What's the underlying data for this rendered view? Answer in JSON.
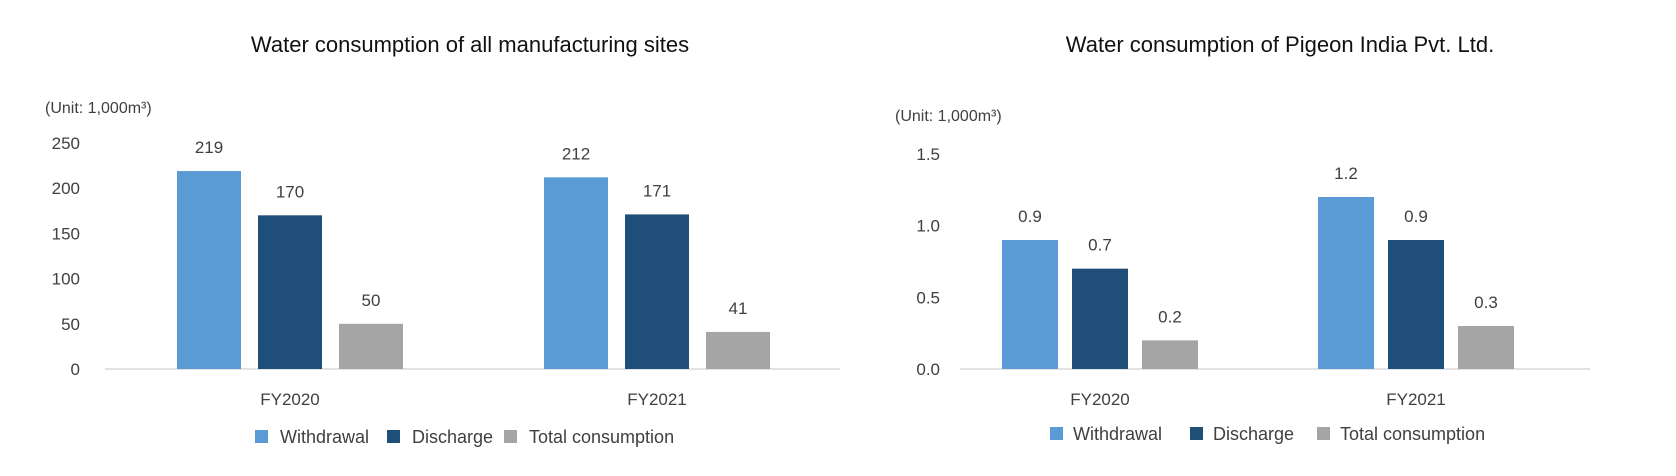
{
  "chart_data": [
    {
      "type": "bar",
      "title": "Water consumption of all manufacturing sites",
      "unit_label": "(Unit: 1,000m³)",
      "categories": [
        "FY2020",
        "FY2021"
      ],
      "series": [
        {
          "name": "Withdrawal",
          "color": "#5b9bd5",
          "values": [
            219,
            212
          ],
          "labels": [
            "219",
            "212"
          ]
        },
        {
          "name": "Discharge",
          "color": "#1f4e79",
          "values": [
            170,
            171
          ],
          "labels": [
            "170",
            "171"
          ]
        },
        {
          "name": "Total consumption",
          "color": "#a5a5a5",
          "values": [
            50,
            41
          ],
          "labels": [
            "50",
            "41"
          ]
        }
      ],
      "ylim": [
        0,
        250
      ],
      "yticks": [
        "0",
        "50",
        "100",
        "150",
        "200",
        "250"
      ],
      "ytick_values": [
        0,
        50,
        100,
        150,
        200,
        250
      ],
      "grid": false,
      "legend": "bottom"
    },
    {
      "type": "bar",
      "title": "Water consumption of Pigeon India Pvt. Ltd.",
      "unit_label": "(Unit: 1,000m³)",
      "categories": [
        "FY2020",
        "FY2021"
      ],
      "series": [
        {
          "name": "Withdrawal",
          "color": "#5b9bd5",
          "values": [
            0.9,
            1.2
          ],
          "labels": [
            "0.9",
            "1.2"
          ]
        },
        {
          "name": "Discharge",
          "color": "#1f4e79",
          "values": [
            0.7,
            0.9
          ],
          "labels": [
            "0.7",
            "0.9"
          ]
        },
        {
          "name": "Total consumption",
          "color": "#a5a5a5",
          "values": [
            0.2,
            0.3
          ],
          "labels": [
            "0.2",
            "0.3"
          ]
        }
      ],
      "ylim": [
        0,
        1.5
      ],
      "yticks": [
        "0.0",
        "0.5",
        "1.0",
        "1.5"
      ],
      "ytick_values": [
        0,
        0.5,
        1.0,
        1.5
      ],
      "grid": false,
      "legend": "bottom"
    }
  ]
}
